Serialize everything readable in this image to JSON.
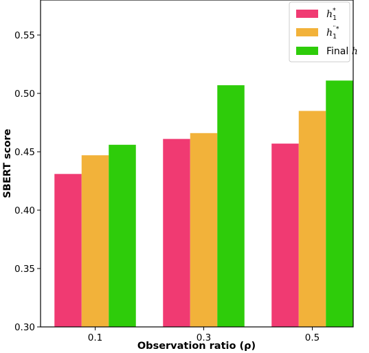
{
  "chart_data": {
    "type": "bar",
    "categories": [
      "0.1",
      "0.3",
      "0.5"
    ],
    "xlabel": "Observation ratio (ρ)",
    "ylabel": "SBERT score",
    "ylim": [
      0.3,
      0.58
    ],
    "yticks": [
      "0.30",
      "0.35",
      "0.40",
      "0.45",
      "0.50",
      "0.55"
    ],
    "legend_position": "top-right",
    "grid": false,
    "series": [
      {
        "name": "h₁*",
        "legend_base": "h",
        "legend_sub": "1",
        "legend_sup": "*",
        "color": "#f03a72",
        "values": [
          0.431,
          0.461,
          0.457
        ]
      },
      {
        "name": "h₁¨*",
        "legend_base": "h",
        "legend_sub": "1",
        "legend_sup": "¨*",
        "color": "#f2b23a",
        "values": [
          0.447,
          0.466,
          0.485
        ]
      },
      {
        "name": "Final h",
        "legend_base": "Final ",
        "legend_italic": "h",
        "color": "#2ecc0a",
        "values": [
          0.456,
          0.507,
          0.511
        ]
      }
    ]
  }
}
